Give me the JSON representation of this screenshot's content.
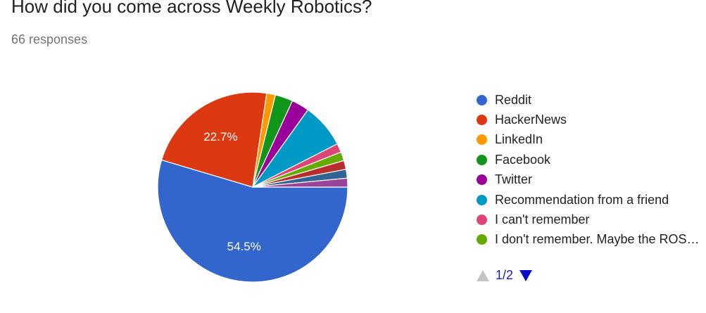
{
  "header": {
    "title": "How did you come across Weekly Robotics?",
    "responses": "66 responses"
  },
  "chart_data": {
    "type": "pie",
    "slices": [
      {
        "label": "Reddit",
        "value": 54.5,
        "color": "#3366cc",
        "data_label": "54.5%"
      },
      {
        "label": "HackerNews",
        "value": 22.7,
        "color": "#dc3912",
        "data_label": "22.7%"
      },
      {
        "label": "LinkedIn",
        "value": 1.5,
        "color": "#ff9900",
        "data_label": ""
      },
      {
        "label": "Facebook",
        "value": 3.0,
        "color": "#109618",
        "data_label": ""
      },
      {
        "label": "Twitter",
        "value": 3.0,
        "color": "#990099",
        "data_label": ""
      },
      {
        "label": "Recommendation from a friend",
        "value": 7.6,
        "color": "#0099c6",
        "data_label": ""
      },
      {
        "label": "I can't remember",
        "value": 1.5,
        "color": "#dd4477",
        "data_label": ""
      },
      {
        "label": "I don't remember. Maybe the ROS…",
        "value": 1.5,
        "color": "#66aa00",
        "data_label": ""
      },
      {
        "label": "",
        "value": 1.5,
        "color": "#b82e2e",
        "data_label": ""
      },
      {
        "label": "",
        "value": 1.5,
        "color": "#316395",
        "data_label": ""
      },
      {
        "label": "",
        "value": 1.5,
        "color": "#994499",
        "data_label": ""
      }
    ],
    "legend_position": "right"
  },
  "legend": {
    "items": [
      {
        "label": "Reddit",
        "color": "#3366cc"
      },
      {
        "label": "HackerNews",
        "color": "#dc3912"
      },
      {
        "label": "LinkedIn",
        "color": "#ff9900"
      },
      {
        "label": "Facebook",
        "color": "#109618"
      },
      {
        "label": "Twitter",
        "color": "#990099"
      },
      {
        "label": "Recommendation from a friend",
        "color": "#0099c6"
      },
      {
        "label": "I can't remember",
        "color": "#dd4477"
      },
      {
        "label": "I don't remember. Maybe the ROS…",
        "color": "#66aa00"
      }
    ]
  },
  "pager": {
    "label": "1/2",
    "prev_icon": "triangle-up-icon",
    "next_icon": "triangle-down-icon"
  }
}
